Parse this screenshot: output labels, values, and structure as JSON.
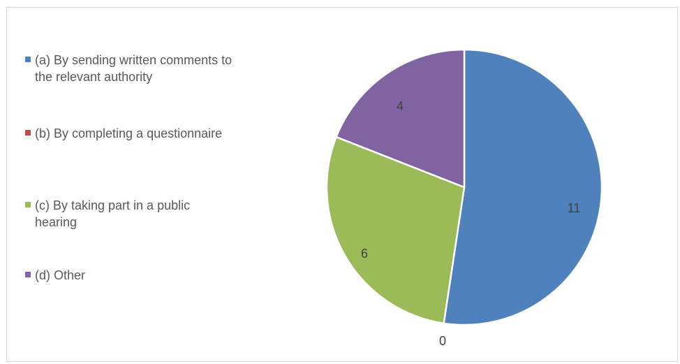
{
  "chart_data": {
    "type": "pie",
    "title": "",
    "categories": [
      "(a) By sending written comments to the relevant authority",
      "(b) By completing a questionnaire",
      "(c) By taking part in a public hearing",
      "(d) Other"
    ],
    "values": [
      11,
      0,
      6,
      4
    ],
    "data_labels": [
      "11",
      "0",
      "6",
      "4"
    ],
    "colors": [
      "#4f81bd",
      "#c0504d",
      "#9bbb59",
      "#8064a2"
    ],
    "legend_position": "left",
    "start_angle": "12 o'clock, clockwise"
  }
}
